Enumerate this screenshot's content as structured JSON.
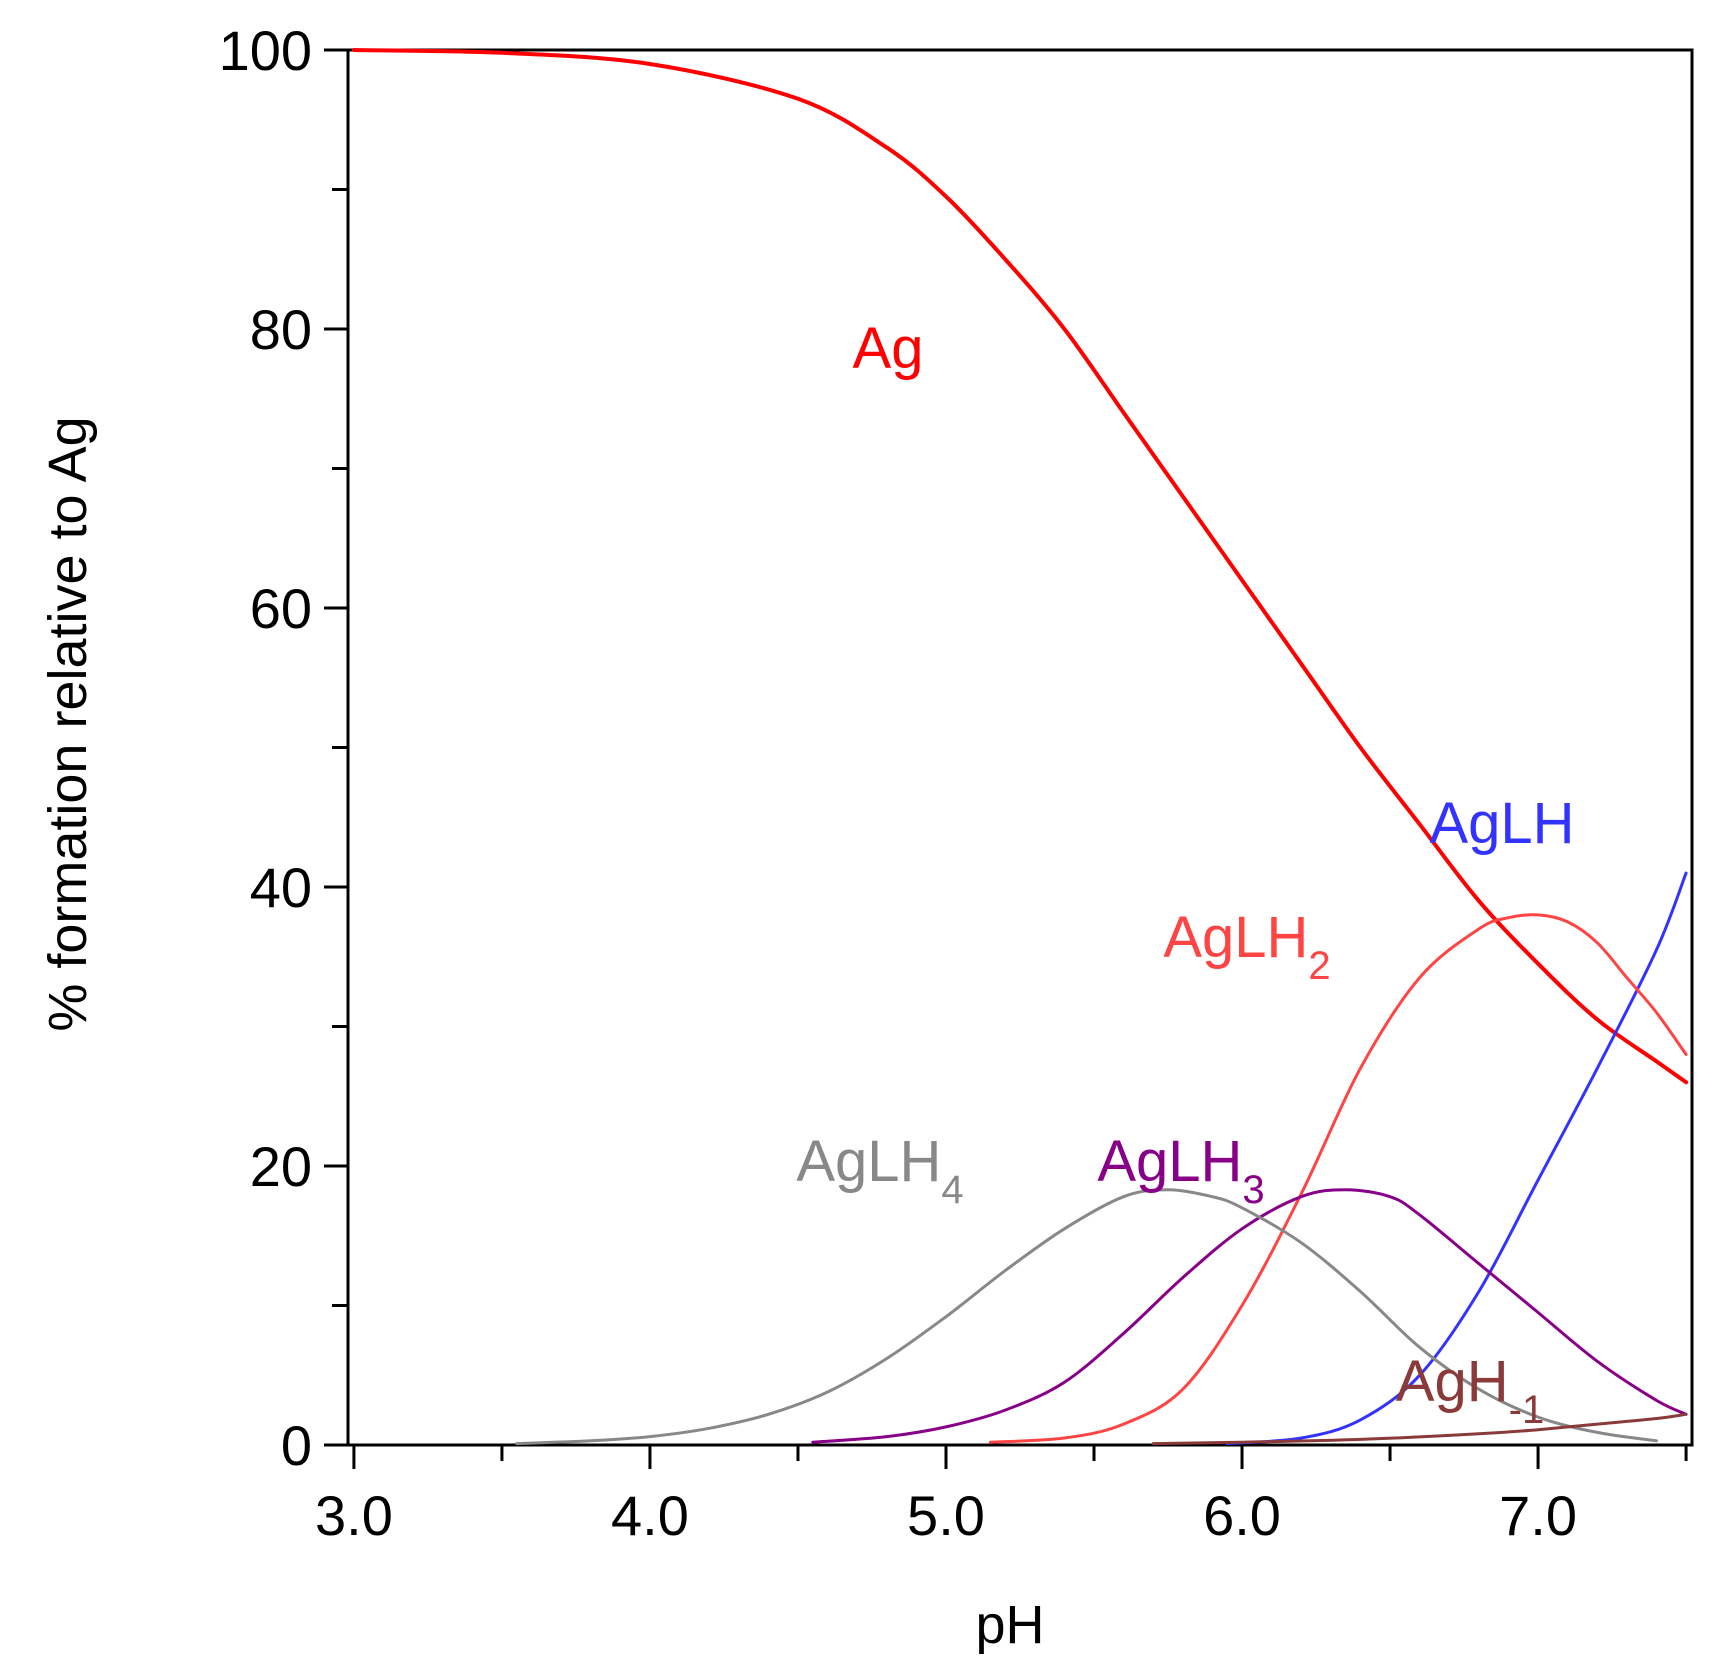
{
  "chart_data": {
    "type": "line",
    "title": "",
    "xlabel": "pH",
    "ylabel": "% formation relative to Ag",
    "xlim": [
      2.98,
      7.52
    ],
    "ylim": [
      0,
      100
    ],
    "x_major_ticks": [
      3.0,
      4.0,
      5.0,
      6.0,
      7.0
    ],
    "x_minor_ticks": [
      3.5,
      4.5,
      5.5,
      6.5,
      7.5
    ],
    "x_tick_labels": [
      "3.0",
      "4.0",
      "5.0",
      "6.0",
      "7.0"
    ],
    "y_major_ticks": [
      0,
      20,
      40,
      60,
      80,
      100
    ],
    "y_minor_ticks": [
      10,
      30,
      50,
      70,
      90
    ],
    "y_tick_labels": [
      "0",
      "20",
      "40",
      "60",
      "80",
      "100"
    ],
    "grid": false,
    "legend": "inline labels",
    "series": [
      {
        "name": "Ag",
        "label_main": "Ag",
        "label_sub": "",
        "color": "#ff0000",
        "x": [
          3.0,
          3.5,
          4.0,
          4.5,
          4.8,
          5.0,
          5.2,
          5.4,
          5.6,
          5.8,
          6.0,
          6.2,
          6.4,
          6.6,
          6.8,
          7.0,
          7.2,
          7.4,
          7.5
        ],
        "y": [
          100,
          99.8,
          99,
          96.5,
          93,
          89.5,
          85,
          80,
          74,
          68,
          62,
          56,
          50,
          44.5,
          39,
          34.5,
          30.5,
          27.5,
          26
        ]
      },
      {
        "name": "AgLH",
        "label_main": "AgLH",
        "label_sub": "",
        "color": "#3333ff",
        "x": [
          5.95,
          6.2,
          6.4,
          6.6,
          6.8,
          7.0,
          7.2,
          7.4,
          7.5
        ],
        "y": [
          0.1,
          0.5,
          1.8,
          5,
          11,
          19,
          27,
          35.5,
          41
        ]
      },
      {
        "name": "AgLH2",
        "label_main": "AgLH",
        "label_sub": "2",
        "color": "#ff4444",
        "x": [
          5.15,
          5.4,
          5.6,
          5.8,
          6.0,
          6.2,
          6.4,
          6.6,
          6.8,
          6.9,
          7.0,
          7.1,
          7.2,
          7.3,
          7.4,
          7.5
        ],
        "y": [
          0.2,
          0.5,
          1.5,
          4,
          10,
          18,
          27,
          33.5,
          37,
          37.8,
          38,
          37.5,
          36,
          33.5,
          31,
          28
        ]
      },
      {
        "name": "AgLH3",
        "label_main": "AgLH",
        "label_sub": "3",
        "color": "#880088",
        "x": [
          4.55,
          4.8,
          5.0,
          5.2,
          5.4,
          5.6,
          5.8,
          6.0,
          6.2,
          6.35,
          6.5,
          6.6,
          6.8,
          7.0,
          7.2,
          7.4,
          7.5
        ],
        "y": [
          0.2,
          0.6,
          1.3,
          2.5,
          4.5,
          8,
          12,
          15.5,
          17.8,
          18.3,
          17.8,
          16.5,
          13,
          9.5,
          6,
          3.2,
          2.2
        ]
      },
      {
        "name": "AgLH4",
        "label_main": "AgLH",
        "label_sub": "4",
        "color": "#888888",
        "x": [
          3.55,
          3.8,
          4.0,
          4.2,
          4.4,
          4.6,
          4.8,
          5.0,
          5.2,
          5.4,
          5.6,
          5.75,
          5.9,
          6.0,
          6.2,
          6.4,
          6.6,
          6.8,
          7.0,
          7.2,
          7.4
        ],
        "y": [
          0.1,
          0.3,
          0.6,
          1.2,
          2.2,
          3.8,
          6.2,
          9.2,
          12.5,
          15.5,
          17.8,
          18.3,
          17.8,
          17,
          14.5,
          11,
          7,
          4,
          2,
          0.9,
          0.3
        ]
      },
      {
        "name": "AgH-1",
        "label_main": "AgH",
        "label_sub": "-1",
        "color": "#8b3a3a",
        "x": [
          5.7,
          6.0,
          6.4,
          6.8,
          7.0,
          7.2,
          7.4,
          7.5
        ],
        "y": [
          0.1,
          0.2,
          0.4,
          0.8,
          1.1,
          1.5,
          1.9,
          2.2
        ]
      }
    ]
  }
}
